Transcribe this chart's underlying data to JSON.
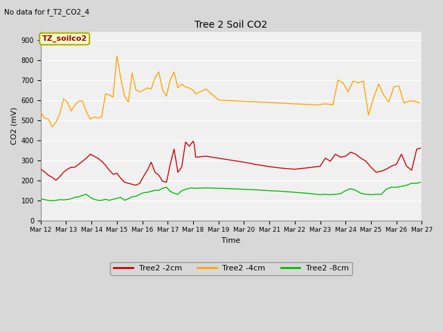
{
  "title": "Tree 2 Soil CO2",
  "subtitle": "No data for f_T2_CO2_4",
  "xlabel": "Time",
  "ylabel": "CO2 (mV)",
  "ylim": [
    0,
    940
  ],
  "yticks": [
    0,
    100,
    200,
    300,
    400,
    500,
    600,
    700,
    800,
    900
  ],
  "annotation_box": "TZ_soilco2",
  "fig_bg_color": "#d8d8d8",
  "plot_bg_color": "#f0f0f0",
  "x_labels": [
    "Mar 12",
    "Mar 13",
    "Mar 14",
    "Mar 15",
    "Mar 16",
    "Mar 17",
    "Mar 18",
    "Mar 19",
    "Mar 20",
    "Mar 21",
    "Mar 22",
    "Mar 23",
    "Mar 24",
    "Mar 25",
    "Mar 26",
    "Mar 27"
  ],
  "legend": [
    {
      "label": "Tree2 -2cm",
      "color": "#cc0000"
    },
    {
      "label": "Tree2 -4cm",
      "color": "#ffa500"
    },
    {
      "label": "Tree2 -8cm",
      "color": "#00bb00"
    }
  ],
  "red_x": [
    12.0,
    12.15,
    12.3,
    12.45,
    12.6,
    12.75,
    12.9,
    13.05,
    13.2,
    13.35,
    13.5,
    13.65,
    13.8,
    13.95,
    14.1,
    14.25,
    14.4,
    14.55,
    14.7,
    14.85,
    15.0,
    15.15,
    15.3,
    15.45,
    15.6,
    15.75,
    15.9,
    16.05,
    16.2,
    16.35,
    16.5,
    16.65,
    16.8,
    16.95,
    17.1,
    17.25,
    17.4,
    17.55,
    17.7,
    17.85,
    18.0,
    18.05,
    18.1,
    18.5,
    19.0,
    19.5,
    20.0,
    20.5,
    21.0,
    21.5,
    22.0,
    22.5,
    23.0,
    23.2,
    23.4,
    23.6,
    23.8,
    24.0,
    24.2,
    24.4,
    24.6,
    24.8,
    25.0,
    25.2,
    25.4,
    25.6,
    25.8,
    26.0,
    26.2,
    26.4,
    26.6,
    26.8,
    26.95
  ],
  "red_y": [
    255,
    242,
    225,
    215,
    200,
    218,
    240,
    255,
    265,
    265,
    280,
    295,
    310,
    330,
    320,
    310,
    295,
    275,
    250,
    230,
    235,
    210,
    190,
    185,
    180,
    175,
    185,
    220,
    250,
    290,
    240,
    225,
    195,
    190,
    280,
    355,
    240,
    265,
    390,
    370,
    395,
    375,
    315,
    320,
    310,
    300,
    290,
    278,
    268,
    260,
    255,
    262,
    270,
    310,
    295,
    330,
    315,
    320,
    340,
    330,
    310,
    295,
    265,
    240,
    245,
    255,
    270,
    280,
    330,
    270,
    250,
    355,
    360
  ],
  "orange_x": [
    12.0,
    12.15,
    12.3,
    12.45,
    12.6,
    12.75,
    12.9,
    13.05,
    13.2,
    13.35,
    13.5,
    13.65,
    13.8,
    13.95,
    14.1,
    14.25,
    14.4,
    14.55,
    14.7,
    14.85,
    15.0,
    15.15,
    15.3,
    15.45,
    15.6,
    15.75,
    15.9,
    16.05,
    16.2,
    16.35,
    16.5,
    16.65,
    16.8,
    16.95,
    17.1,
    17.25,
    17.4,
    17.55,
    17.7,
    17.85,
    18.0,
    18.05,
    18.1,
    18.5,
    19.0,
    22.95,
    23.1,
    23.3,
    23.5,
    23.7,
    23.9,
    24.1,
    24.3,
    24.5,
    24.7,
    24.9,
    25.1,
    25.3,
    25.5,
    25.7,
    25.9,
    26.1,
    26.3,
    26.5,
    26.7,
    26.9
  ],
  "orange_y": [
    540,
    510,
    505,
    465,
    490,
    530,
    605,
    590,
    545,
    575,
    595,
    595,
    540,
    505,
    515,
    510,
    515,
    630,
    625,
    615,
    820,
    710,
    620,
    590,
    735,
    650,
    640,
    650,
    660,
    655,
    710,
    740,
    650,
    620,
    700,
    740,
    660,
    680,
    665,
    660,
    650,
    640,
    630,
    655,
    600,
    575,
    580,
    580,
    575,
    700,
    685,
    640,
    695,
    685,
    695,
    525,
    610,
    680,
    625,
    590,
    665,
    670,
    585,
    595,
    595,
    585
  ],
  "green_x": [
    12.0,
    12.15,
    12.3,
    12.45,
    12.6,
    12.75,
    12.9,
    13.05,
    13.2,
    13.35,
    13.5,
    13.65,
    13.8,
    13.95,
    14.1,
    14.25,
    14.4,
    14.55,
    14.7,
    14.85,
    15.0,
    15.15,
    15.3,
    15.45,
    15.6,
    15.75,
    15.9,
    16.05,
    16.2,
    16.35,
    16.5,
    16.65,
    16.8,
    16.95,
    17.1,
    17.25,
    17.4,
    17.55,
    17.7,
    17.85,
    18.0,
    18.05,
    18.1,
    18.5,
    19.0,
    19.5,
    20.0,
    20.5,
    21.0,
    21.5,
    22.0,
    22.5,
    23.0,
    23.2,
    23.4,
    23.6,
    23.8,
    24.0,
    24.2,
    24.4,
    24.6,
    24.8,
    25.0,
    25.2,
    25.4,
    25.6,
    25.8,
    26.0,
    26.2,
    26.4,
    26.6,
    26.8,
    26.95
  ],
  "green_y": [
    108,
    103,
    100,
    98,
    100,
    103,
    102,
    104,
    108,
    115,
    118,
    125,
    130,
    115,
    105,
    100,
    100,
    105,
    100,
    105,
    110,
    115,
    100,
    108,
    118,
    120,
    130,
    138,
    140,
    145,
    150,
    150,
    160,
    165,
    145,
    135,
    130,
    148,
    155,
    160,
    162,
    160,
    160,
    162,
    160,
    158,
    155,
    152,
    148,
    145,
    140,
    135,
    128,
    130,
    128,
    130,
    133,
    148,
    158,
    150,
    135,
    130,
    128,
    130,
    130,
    155,
    165,
    165,
    170,
    175,
    185,
    185,
    190
  ]
}
